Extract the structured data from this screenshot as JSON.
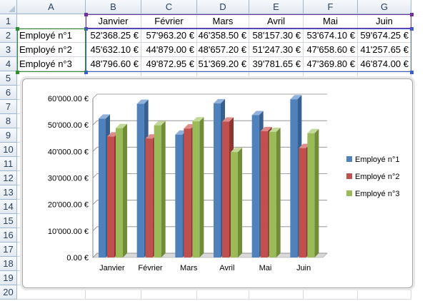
{
  "spreadsheet": {
    "column_headers": [
      "A",
      "B",
      "C",
      "D",
      "E",
      "F",
      "G"
    ],
    "row_headers": [
      "1",
      "2",
      "3",
      "4",
      "5",
      "6",
      "7",
      "8",
      "9",
      "10",
      "11",
      "12",
      "13",
      "14",
      "15",
      "16",
      "17",
      "18",
      "19",
      "20"
    ],
    "month_headers": [
      "Janvier",
      "Février",
      "Mars",
      "Avril",
      "Mai",
      "Juin"
    ],
    "rows": [
      {
        "label": "Employé n°1",
        "values": [
          "52'368.25 €",
          "57'963.20 €",
          "46'358.50 €",
          "58'157.30 €",
          "53'674.10 €",
          "59'674.25 €"
        ]
      },
      {
        "label": "Employé n°2",
        "values": [
          "45'632.10 €",
          "44'879.00 €",
          "48'657.20 €",
          "51'247.30 €",
          "47'658.60 €",
          "41'257.65 €"
        ]
      },
      {
        "label": "Employé n°3",
        "values": [
          "48'796.60 €",
          "49'872.95 €",
          "51'369.20 €",
          "39'781.65 €",
          "47'369.80 €",
          "46'874.00 €"
        ]
      }
    ]
  },
  "colors": {
    "series1": "#4f81bd",
    "series1_dark": "#35608f",
    "series1_top": "#8fb1dc",
    "series2": "#c0504d",
    "series2_dark": "#8e3431",
    "series2_top": "#de8c8a",
    "series3": "#9bbb59",
    "series3_dark": "#6f8c38",
    "series3_top": "#c3d99a",
    "grid": "#868686",
    "selection": "#3a5fcd"
  },
  "chart_data": {
    "type": "bar",
    "categories": [
      "Janvier",
      "Février",
      "Mars",
      "Avril",
      "Mai",
      "Juin"
    ],
    "series": [
      {
        "name": "Employé n°1",
        "values": [
          52368.25,
          57963.2,
          46358.5,
          58157.3,
          53674.1,
          59674.25
        ]
      },
      {
        "name": "Employé n°2",
        "values": [
          45632.1,
          44879.0,
          48657.2,
          51247.3,
          47658.6,
          41257.65
        ]
      },
      {
        "name": "Employé n°3",
        "values": [
          48796.6,
          49872.95,
          51369.2,
          39781.65,
          47369.8,
          46874.0
        ]
      }
    ],
    "ylim": [
      0,
      60000
    ],
    "ytick_labels": [
      "0.00 €",
      "10'000.00 €",
      "20'000.00 €",
      "30'000.00 €",
      "40'000.00 €",
      "50'000.00 €",
      "60'000.00 €"
    ],
    "grid": true,
    "legend": "right",
    "title": "",
    "xlabel": "",
    "ylabel": ""
  }
}
